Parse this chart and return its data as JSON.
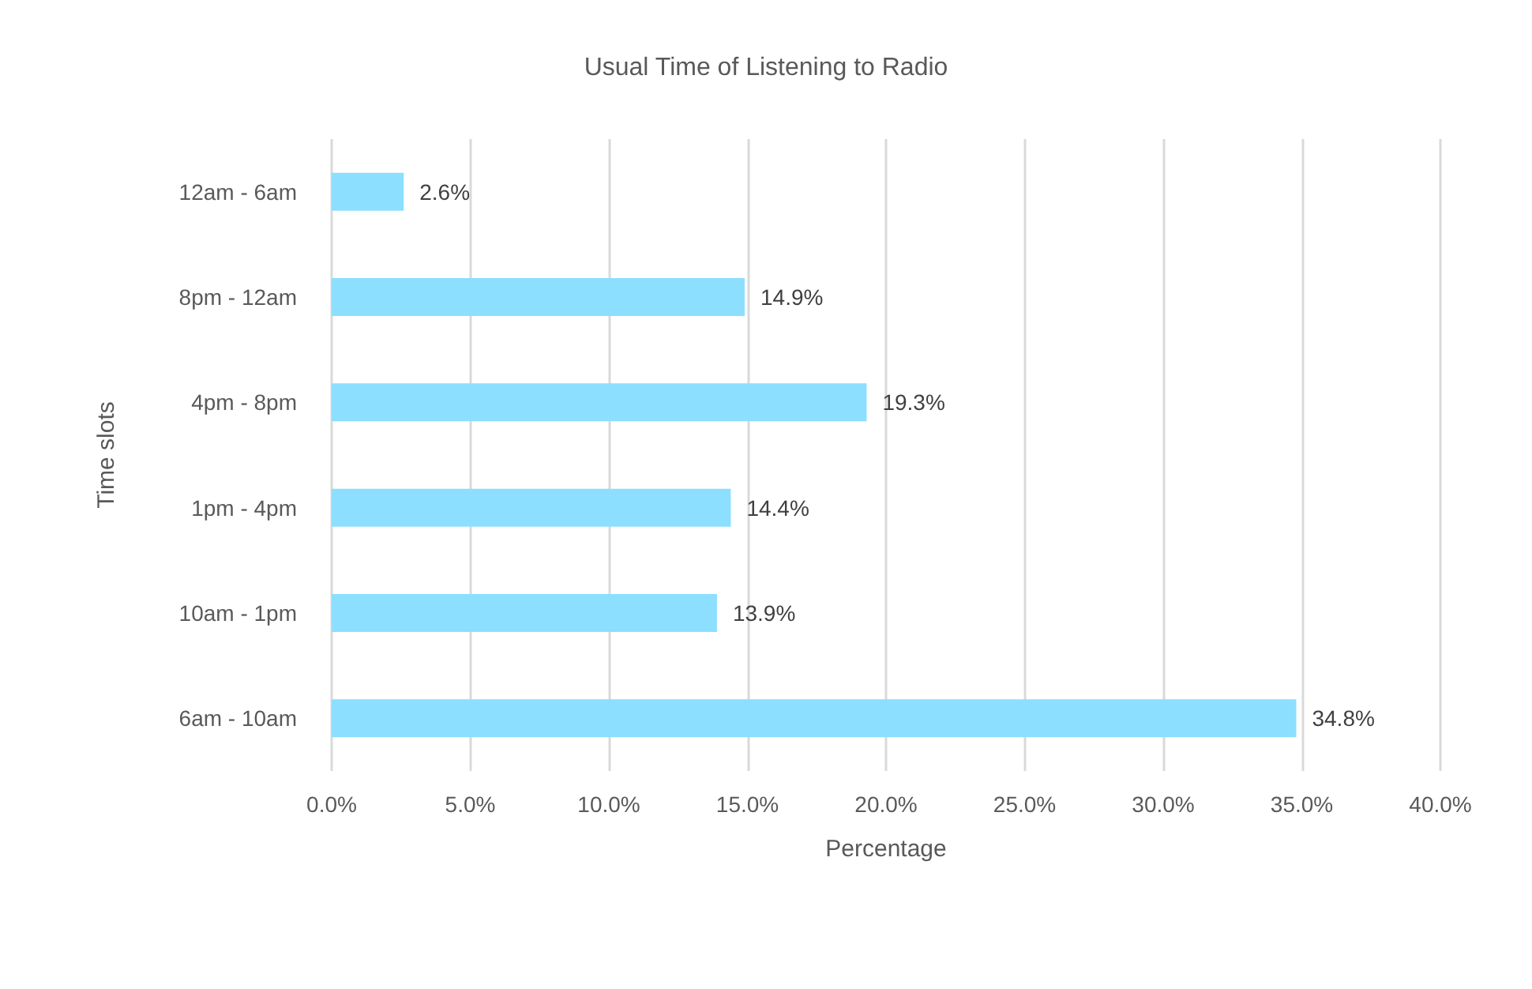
{
  "chart_data": {
    "type": "bar",
    "orientation": "horizontal",
    "title": "Usual Time of Listening to Radio",
    "xlabel": "Percentage",
    "ylabel": "Time slots",
    "categories": [
      "12am - 6am",
      "8pm - 12am",
      "4pm - 8pm",
      "1pm - 4pm",
      "10am - 1pm",
      "6am - 10am"
    ],
    "values": [
      2.6,
      14.9,
      19.3,
      14.4,
      13.9,
      34.8
    ],
    "value_labels": [
      "2.6%",
      "14.9%",
      "19.3%",
      "14.4%",
      "13.9%",
      "34.8%"
    ],
    "color": "#8cdffe",
    "xlim": [
      0,
      40
    ],
    "xticks": [
      {
        "value": 0,
        "label": "0.0%"
      },
      {
        "value": 5,
        "label": "5.0%"
      },
      {
        "value": 10,
        "label": "10.0%"
      },
      {
        "value": 15,
        "label": "15.0%"
      },
      {
        "value": 20,
        "label": "20.0%"
      },
      {
        "value": 25,
        "label": "25.0%"
      },
      {
        "value": 30,
        "label": "30.0%"
      },
      {
        "value": 35,
        "label": "35.0%"
      },
      {
        "value": 40,
        "label": "40.0%"
      }
    ],
    "grid": "x"
  }
}
